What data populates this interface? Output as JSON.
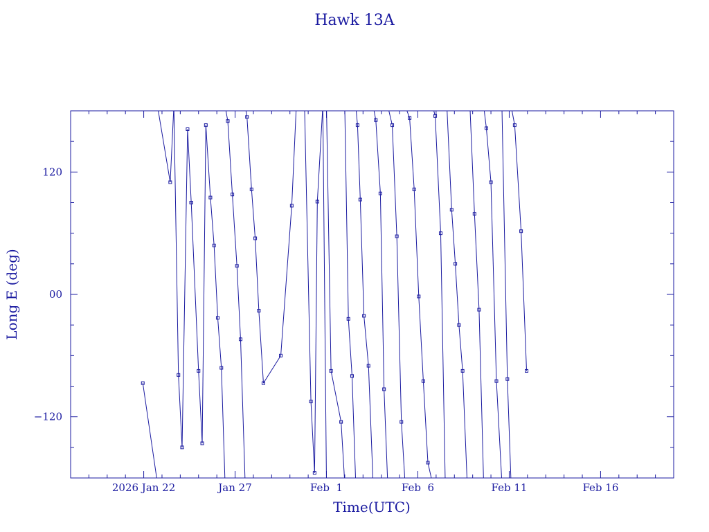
{
  "chart_data": {
    "type": "line",
    "title": "Hawk 13A",
    "xlabel": "Time(UTC)",
    "ylabel": "Long E (deg)",
    "x_range": [
      "2026-01-18T00:00",
      "2026-02-20T00:00"
    ],
    "xlim": [
      -4.0,
      29.0
    ],
    "ylim": [
      -180,
      180
    ],
    "x_ticks": [
      {
        "label": "2026 Jan 22",
        "value": 0
      },
      {
        "label": "Jan 27",
        "value": 5
      },
      {
        "label": "Feb  1",
        "value": 10
      },
      {
        "label": "Feb  6",
        "value": 15
      },
      {
        "label": "Feb 11",
        "value": 20
      },
      {
        "label": "Feb 16",
        "value": 25
      }
    ],
    "y_ticks": [
      {
        "label": "120",
        "value": 120
      },
      {
        "label": "00",
        "value": 0
      },
      {
        "label": "−120",
        "value": -120
      }
    ],
    "grid": false,
    "color": "#1a1aa0",
    "series": [
      {
        "points": [
          [
            -0.05,
            -87
          ],
          [
            0.75,
            -185
          ],
          [
            0.75,
            185
          ],
          [
            1.45,
            110
          ],
          [
            1.65,
            185
          ],
          [
            1.65,
            185
          ],
          [
            1.9,
            -79
          ],
          [
            2.1,
            -150
          ],
          [
            2.4,
            162
          ],
          [
            2.6,
            90
          ],
          [
            2.6,
            90
          ],
          [
            3.0,
            -75
          ],
          [
            3.2,
            -146
          ],
          [
            3.4,
            166
          ],
          [
            3.65,
            95
          ],
          [
            3.85,
            48
          ],
          [
            4.05,
            -23
          ],
          [
            4.25,
            -72
          ],
          [
            4.45,
            -185
          ],
          [
            4.45,
            185
          ],
          [
            4.6,
            170
          ],
          [
            4.85,
            98
          ],
          [
            5.1,
            28
          ],
          [
            5.3,
            -44
          ],
          [
            5.55,
            -185
          ],
          [
            5.55,
            185
          ],
          [
            5.65,
            174
          ],
          [
            5.9,
            103
          ],
          [
            6.1,
            55
          ],
          [
            6.3,
            -16
          ],
          [
            6.55,
            -87
          ],
          [
            7.5,
            -60
          ],
          [
            8.1,
            87
          ],
          [
            8.35,
            185
          ],
          [
            8.35,
            185
          ],
          [
            8.8,
            185
          ],
          [
            8.8,
            185
          ],
          [
            9.15,
            -105
          ],
          [
            9.35,
            -175
          ],
          [
            9.5,
            91
          ],
          [
            9.8,
            185
          ],
          [
            9.8,
            185
          ],
          [
            10.0,
            -185
          ],
          [
            10.0,
            185
          ],
          [
            10.25,
            -75
          ],
          [
            10.8,
            -125
          ],
          [
            11.0,
            -185
          ],
          [
            11.0,
            185
          ],
          [
            11.2,
            -24
          ],
          [
            11.4,
            -80
          ],
          [
            11.6,
            -185
          ],
          [
            11.6,
            185
          ],
          [
            11.7,
            166
          ],
          [
            11.85,
            93
          ],
          [
            12.05,
            -21
          ],
          [
            12.3,
            -70
          ],
          [
            12.55,
            -185
          ],
          [
            12.55,
            185
          ],
          [
            12.7,
            171
          ],
          [
            12.95,
            99
          ],
          [
            13.15,
            -93
          ],
          [
            13.35,
            -185
          ],
          [
            13.35,
            185
          ],
          [
            13.6,
            166
          ],
          [
            13.85,
            57
          ],
          [
            14.1,
            -125
          ],
          [
            14.3,
            -185
          ],
          [
            14.3,
            185
          ],
          [
            14.55,
            173
          ],
          [
            14.8,
            103
          ],
          [
            15.05,
            -2
          ],
          [
            15.3,
            -85
          ],
          [
            15.55,
            -165
          ],
          [
            15.8,
            -185
          ],
          [
            15.8,
            185
          ],
          [
            15.95,
            175
          ],
          [
            16.25,
            60
          ],
          [
            16.5,
            -185
          ],
          [
            16.5,
            185
          ],
          [
            16.6,
            180
          ],
          [
            16.85,
            83
          ],
          [
            17.05,
            30
          ],
          [
            17.25,
            -30
          ],
          [
            17.45,
            -75
          ],
          [
            17.7,
            -185
          ],
          [
            17.7,
            185
          ],
          [
            17.85,
            185
          ],
          [
            18.1,
            79
          ],
          [
            18.35,
            -15
          ],
          [
            18.6,
            -185
          ],
          [
            18.6,
            185
          ],
          [
            18.75,
            163
          ],
          [
            19.0,
            110
          ],
          [
            19.3,
            -85
          ],
          [
            19.6,
            -185
          ],
          [
            19.6,
            185
          ],
          [
            19.9,
            -83
          ],
          [
            20.1,
            -185
          ],
          [
            20.1,
            185
          ],
          [
            20.3,
            166
          ],
          [
            20.65,
            62
          ],
          [
            20.95,
            -75
          ]
        ]
      }
    ]
  }
}
